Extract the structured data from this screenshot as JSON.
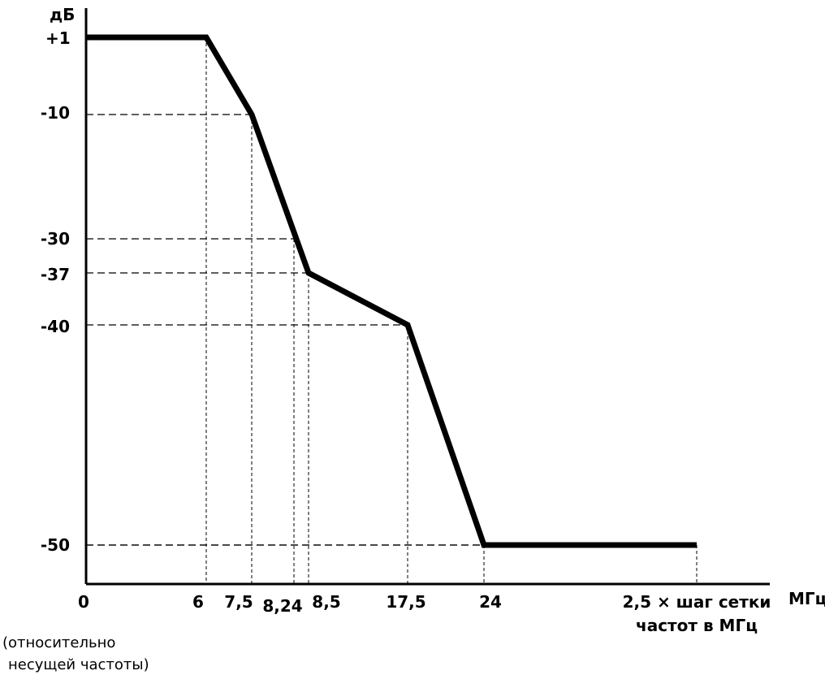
{
  "chart_data": {
    "type": "line",
    "ylabel": "дБ",
    "y_top_label": "+1",
    "xlabel": "МГц",
    "x_note_line1": "(относительно",
    "x_note_line2": "несущей частоты)",
    "x_ticks": [
      "0",
      "6",
      "7,5",
      "8,24",
      "8,5",
      "17,5",
      "24",
      "2,5 × шаг сетки",
      "частот в МГц"
    ],
    "y_ticks": [
      "-10",
      "-30",
      "-37",
      "-40",
      "-50"
    ],
    "series": [
      {
        "points": [
          {
            "x": 0,
            "y": 1
          },
          {
            "x": 6,
            "y": 1
          },
          {
            "x": 7.5,
            "y": -10
          },
          {
            "x": 8.5,
            "y": -37
          },
          {
            "x": 17.5,
            "y": -40
          },
          {
            "x": 24,
            "y": -50
          },
          {
            "x": "2,5 × шаг сетки частот в МГц",
            "y": -50
          }
        ]
      }
    ],
    "guides": [
      {
        "x": 6,
        "y": 1
      },
      {
        "x": 7.5,
        "y": -10
      },
      {
        "x": 8.24,
        "y": -30
      },
      {
        "x": 8.5,
        "y": -37
      },
      {
        "x": 17.5,
        "y": -40
      },
      {
        "x": 24,
        "y": -50
      },
      {
        "x": "2,5 × шаг сетки частот в МГц",
        "y": -50
      }
    ],
    "grid": false,
    "legend": "none"
  }
}
